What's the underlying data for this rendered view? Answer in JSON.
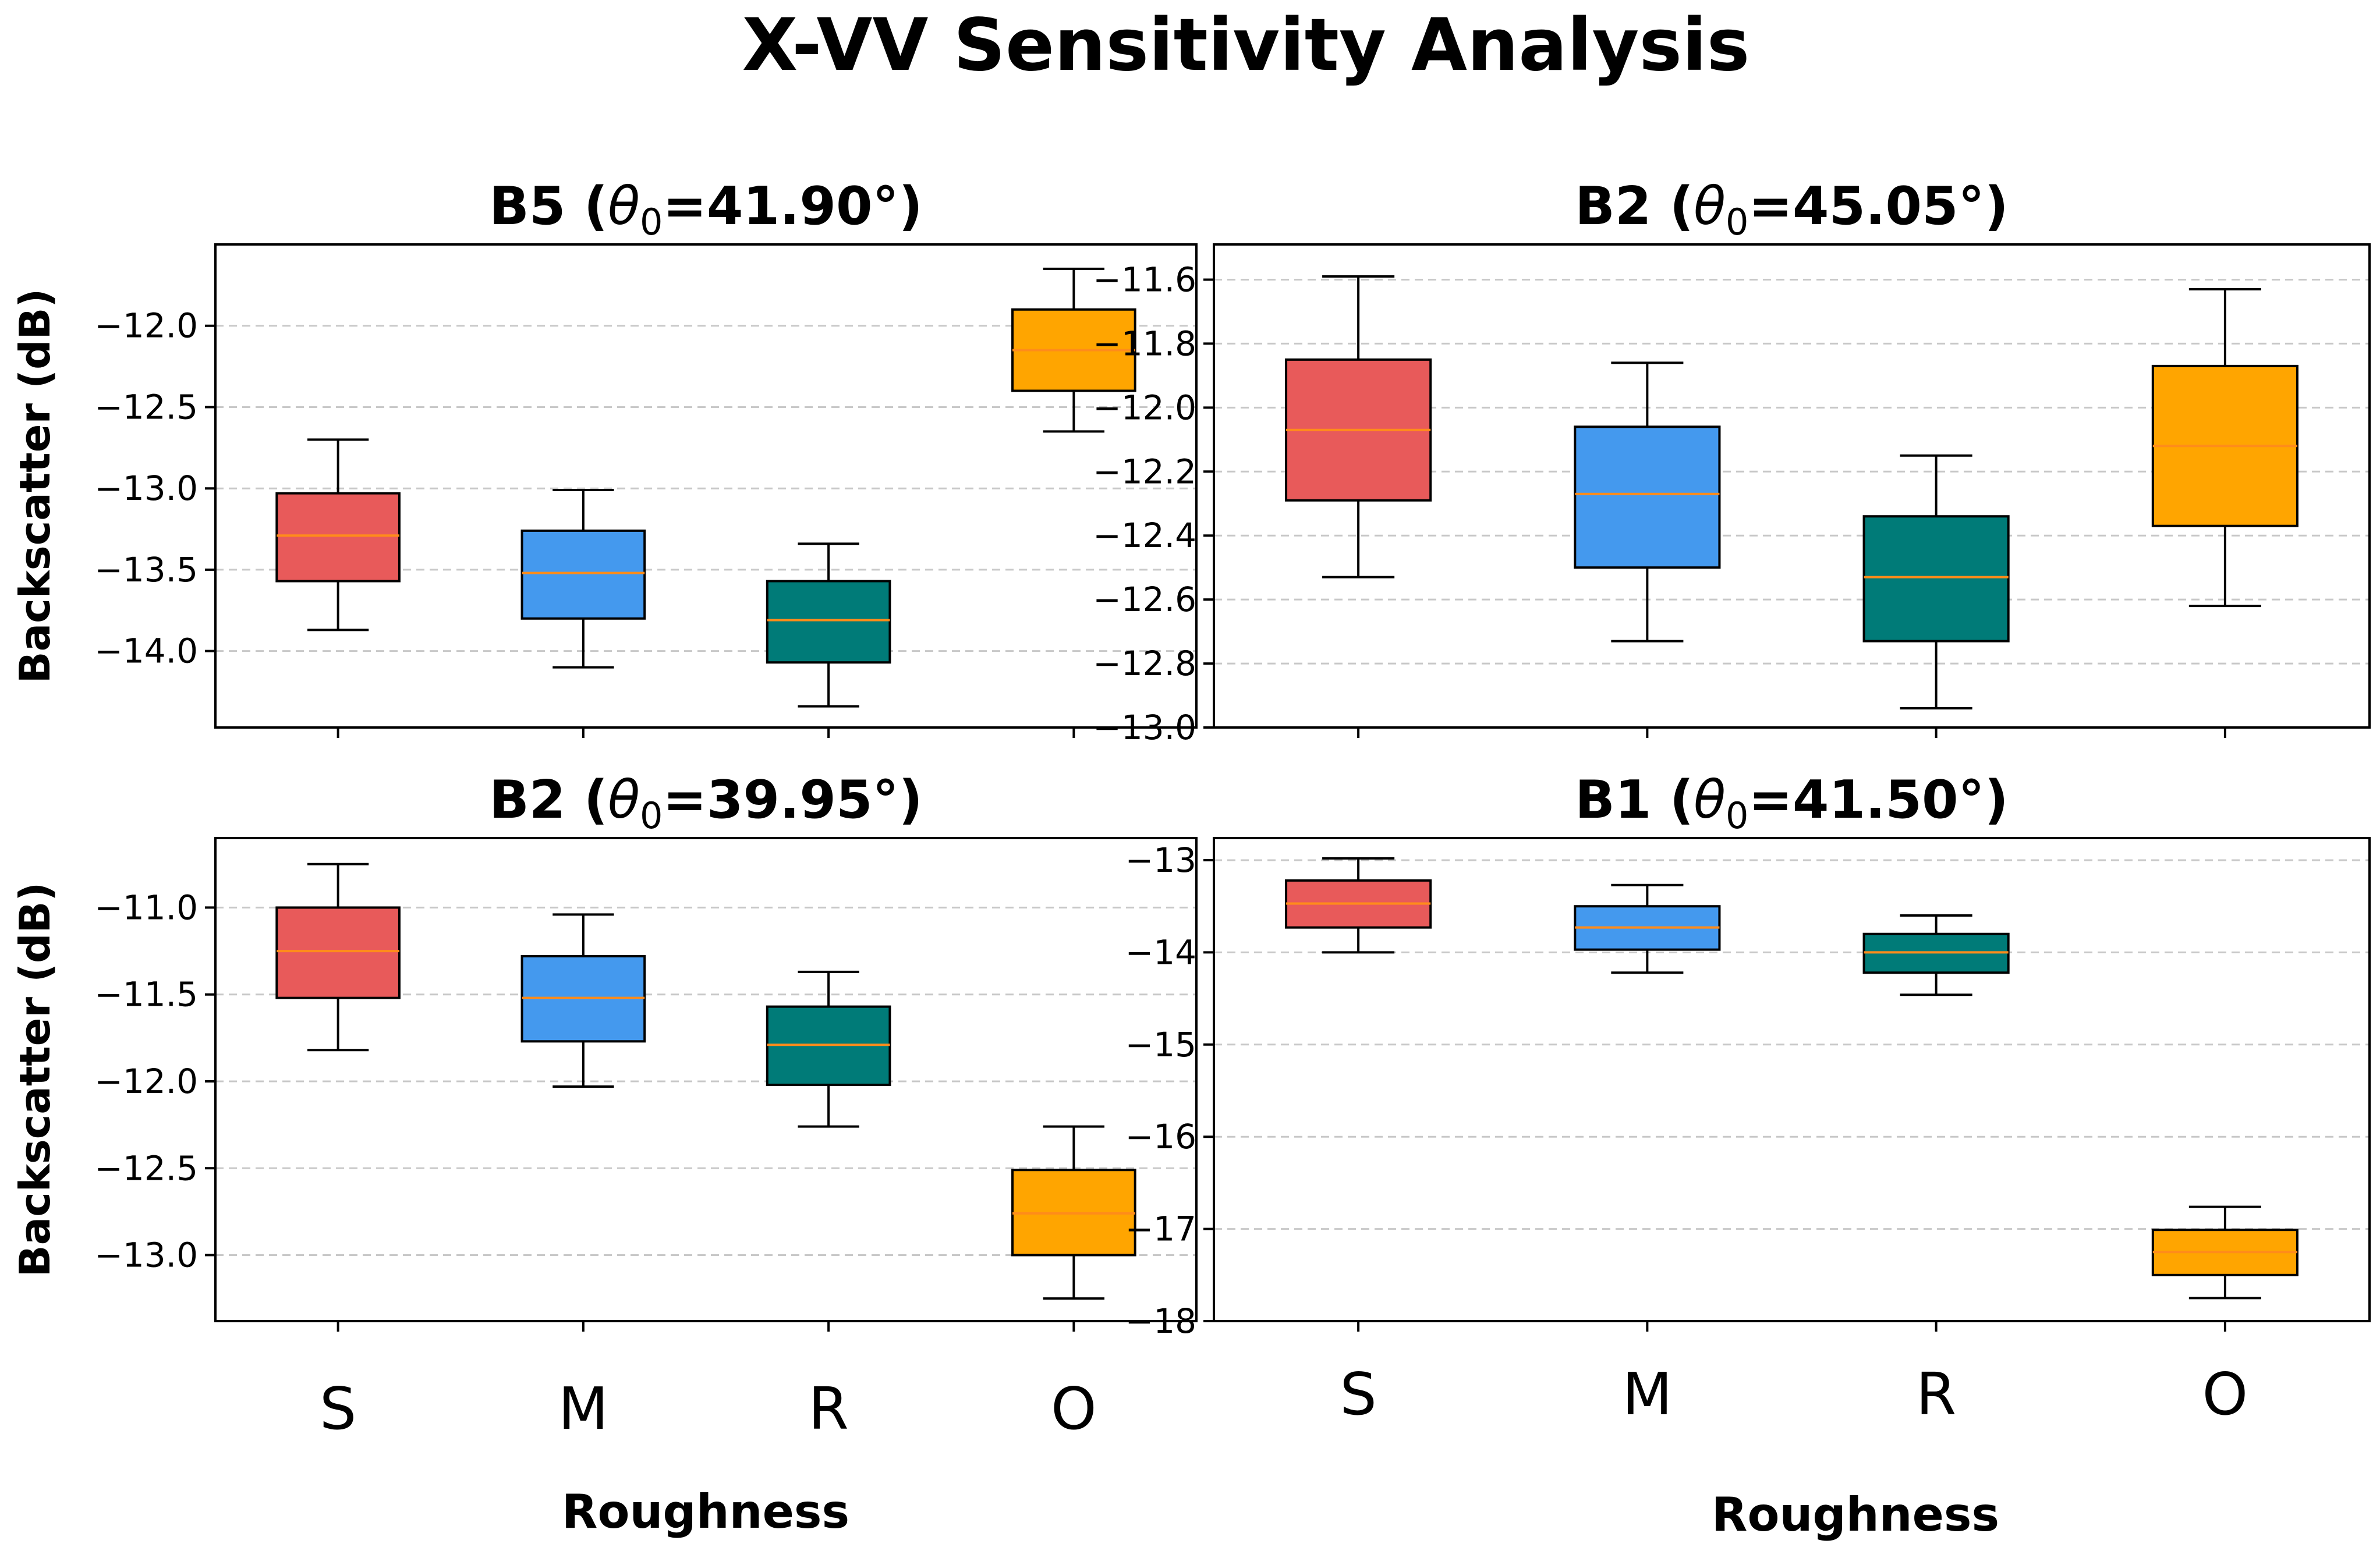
{
  "figure": {
    "title": "X-VV Sensitivity Analysis",
    "xlabel": "Roughness",
    "ylabel": "Backscatter (dB)"
  },
  "colors": {
    "S": "#e85a5a",
    "M": "#4499ee",
    "R": "#007b78",
    "O": "#ffa500",
    "median": "#ff8c1a",
    "grid": "#c8c8c8"
  },
  "chart_data": [
    {
      "type": "box",
      "id": "b5",
      "title_prefix": "B5 (",
      "title_theta": "θ",
      "title_sub": "0",
      "title_suffix": "=41.90°)",
      "categories": [
        "S",
        "M",
        "R",
        "O"
      ],
      "ylim": [
        -14.47,
        -11.5
      ],
      "yticks": [
        -12.0,
        -12.5,
        -13.0,
        -13.5,
        -14.0
      ],
      "ytick_labels": [
        "−12.0",
        "−12.5",
        "−13.0",
        "−13.5",
        "−14.0"
      ],
      "boxes": [
        {
          "whislo": -13.87,
          "q1": -13.57,
          "med": -13.29,
          "q3": -13.03,
          "whishi": -12.7
        },
        {
          "whislo": -14.1,
          "q1": -13.8,
          "med": -13.52,
          "q3": -13.26,
          "whishi": -13.01
        },
        {
          "whislo": -14.34,
          "q1": -14.07,
          "med": -13.81,
          "q3": -13.57,
          "whishi": -13.34
        },
        {
          "whislo": -12.65,
          "q1": -12.4,
          "med": -12.15,
          "q3": -11.9,
          "whishi": -11.65
        }
      ]
    },
    {
      "type": "box",
      "id": "b2a",
      "title_prefix": "B2 (",
      "title_theta": "θ",
      "title_sub": "0",
      "title_suffix": "=45.05°)",
      "categories": [
        "S",
        "M",
        "R",
        "O"
      ],
      "ylim": [
        -13.0,
        -11.49
      ],
      "yticks": [
        -11.6,
        -11.8,
        -12.0,
        -12.2,
        -12.4,
        -12.6,
        -12.8,
        -13.0
      ],
      "ytick_labels": [
        "−11.6",
        "−11.8",
        "−12.0",
        "−12.2",
        "−12.4",
        "−12.6",
        "−12.8",
        "−13.0"
      ],
      "boxes": [
        {
          "whislo": -12.53,
          "q1": -12.29,
          "med": -12.07,
          "q3": -11.85,
          "whishi": -11.59
        },
        {
          "whislo": -12.73,
          "q1": -12.5,
          "med": -12.27,
          "q3": -12.06,
          "whishi": -11.86
        },
        {
          "whislo": -12.94,
          "q1": -12.73,
          "med": -12.53,
          "q3": -12.34,
          "whishi": -12.15
        },
        {
          "whislo": -12.62,
          "q1": -12.37,
          "med": -12.12,
          "q3": -11.87,
          "whishi": -11.63
        }
      ]
    },
    {
      "type": "box",
      "id": "b2b",
      "title_prefix": "B2 (",
      "title_theta": "θ",
      "title_sub": "0",
      "title_suffix": "=39.95°)",
      "categories": [
        "S",
        "M",
        "R",
        "O"
      ],
      "ylim": [
        -13.38,
        -10.6
      ],
      "yticks": [
        -11.0,
        -11.5,
        -12.0,
        -12.5,
        -13.0
      ],
      "ytick_labels": [
        "−11.0",
        "−11.5",
        "−12.0",
        "−12.5",
        "−13.0"
      ],
      "boxes": [
        {
          "whislo": -11.82,
          "q1": -11.52,
          "med": -11.25,
          "q3": -11.0,
          "whishi": -10.75
        },
        {
          "whislo": -12.03,
          "q1": -11.77,
          "med": -11.52,
          "q3": -11.28,
          "whishi": -11.04
        },
        {
          "whislo": -12.26,
          "q1": -12.02,
          "med": -11.79,
          "q3": -11.57,
          "whishi": -11.37
        },
        {
          "whislo": -13.25,
          "q1": -13.0,
          "med": -12.76,
          "q3": -12.51,
          "whishi": -12.26
        }
      ]
    },
    {
      "type": "box",
      "id": "b1",
      "title_prefix": "B1 (",
      "title_theta": "θ",
      "title_sub": "0",
      "title_suffix": "=41.50°)",
      "categories": [
        "S",
        "M",
        "R",
        "O"
      ],
      "ylim": [
        -18.0,
        -12.76
      ],
      "yticks": [
        -13,
        -14,
        -15,
        -16,
        -17,
        -18
      ],
      "ytick_labels": [
        "−13",
        "−14",
        "−15",
        "−16",
        "−17",
        "−18"
      ],
      "boxes": [
        {
          "whislo": -14.0,
          "q1": -13.73,
          "med": -13.47,
          "q3": -13.22,
          "whishi": -12.98
        },
        {
          "whislo": -14.22,
          "q1": -13.97,
          "med": -13.73,
          "q3": -13.5,
          "whishi": -13.27
        },
        {
          "whislo": -14.46,
          "q1": -14.22,
          "med": -14.0,
          "q3": -13.8,
          "whishi": -13.6
        },
        {
          "whislo": -17.75,
          "q1": -17.5,
          "med": -17.25,
          "q3": -17.01,
          "whishi": -16.76
        }
      ]
    }
  ]
}
